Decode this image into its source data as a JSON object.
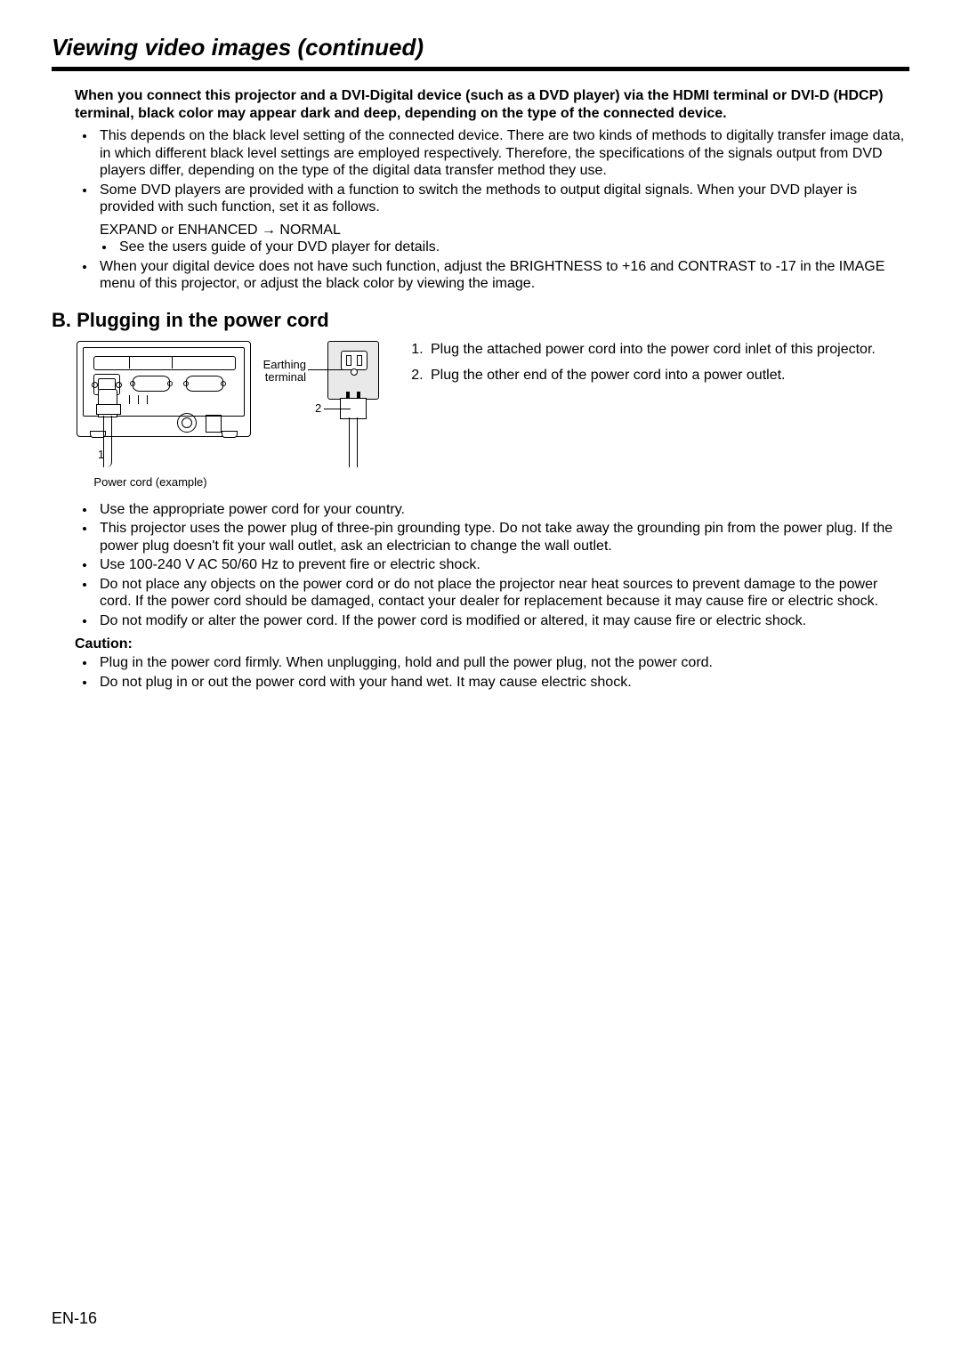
{
  "title": "Viewing video images (continued)",
  "intro_bold": "When you connect this projector and a DVI-Digital device (such as a DVD player) via the HDMI terminal or DVI-D (HDCP) terminal, black color may appear dark and deep, depending on the type of the connected device.",
  "outer": [
    "This depends on the black level setting of the connected device. There are two kinds of methods to digitally transfer image data, in which different black level settings are employed respectively. Therefore, the specifications of the signals output from DVD players differ, depending on the type of the digital data transfer method they use.",
    "Some DVD players are provided with a function to switch the methods to output digital signals. When your DVD player is provided with such function, set it as follows."
  ],
  "sub_line": "EXPAND or ENHANCED → NORMAL",
  "inner": [
    "See the users guide of your DVD player for details."
  ],
  "outer_after": [
    "When your digital device does not have such function, adjust the BRIGHTNESS to +16 and CONTRAST to -17 in the IMAGE menu of this projector, or adjust the black color by viewing the image."
  ],
  "section_heading": "B. Plugging in the power cord",
  "diagram": {
    "label_earth": "Earthing terminal",
    "label_1": "1",
    "label_2": "2",
    "caption": "Power cord (example)"
  },
  "steps": [
    "Plug the attached power cord into the power cord inlet of this projector.",
    "Plug the other end of the power cord into a power outlet."
  ],
  "bullets_after": [
    "Use the appropriate power cord for your country.",
    "This projector uses the power plug of three-pin grounding type. Do not take away the grounding pin from the power plug. If the power plug doesn't fit your wall outlet, ask an electrician to change the wall outlet.",
    "Use 100-240 V AC 50/60 Hz to prevent fire or electric shock.",
    "Do not place any objects on the power cord or do not place the projector near heat sources to prevent damage to the power cord. If the power cord should be damaged, contact your dealer for replacement because it may cause fire or electric shock.",
    "Do not modify or alter the power cord. If the power cord is modified or altered, it may cause fire or electric shock."
  ],
  "caution_label": "Caution:",
  "caution_bullets": [
    "Plug in the power cord firmly. When unplugging, hold and pull the power plug, not the power cord.",
    "Do not plug in or out the power cord with your hand wet. It may cause electric shock."
  ],
  "page_number": "EN-16"
}
